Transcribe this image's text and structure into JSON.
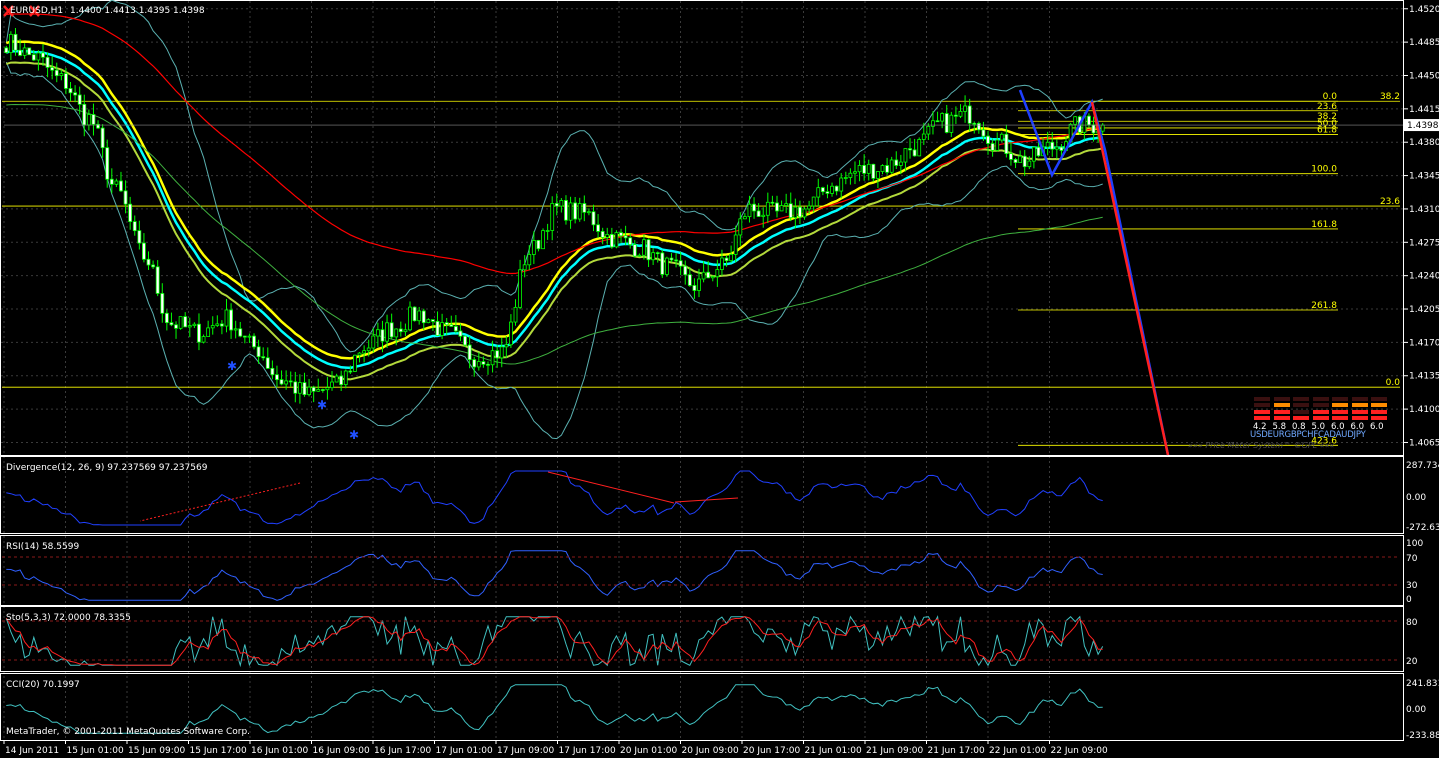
{
  "header": {
    "symbol": "EURUSD,H1",
    "ohlc": "1.4400 1.4413 1.4395 1.4398",
    "close_icons": [
      "close-icon",
      "close-icon"
    ]
  },
  "colors": {
    "bg": "#000000",
    "grid": "#3a3a3a",
    "bull": "#00ff00",
    "bear": "#ffffff",
    "ema_yellow": "#ffff00",
    "ema_cyan": "#00ffff",
    "ema_olive": "#b3d93b",
    "band_red": "#ff0000",
    "bollinger": "#5ab0b0",
    "trend": "#ff2020",
    "zigzag": "#1f3fff"
  },
  "footer": {
    "copyright": "MetaTrader, © 2001-2011 MetaQuotes Software Corp."
  },
  "price_meter": {
    "values": [
      "4.2",
      "5.8",
      "0.8",
      "5.0",
      "6.0",
      "6.0",
      "6.0"
    ],
    "currencies": "USDEURGBPCHFCADAUDJPY",
    "caption": "»»» Price Meter System™ ©GPL «««"
  },
  "chart_data": [
    {
      "type": "candlestick",
      "title": "EURUSD,H1",
      "subtitle": "1.4400 1.4413 1.4395 1.4398",
      "ylim": [
        1.4055,
        1.4525
      ],
      "y_ticks": [
        "1.4520",
        "1.4485",
        "1.4450",
        "1.4415",
        "1.4380",
        "1.4345",
        "1.4310",
        "1.4275",
        "1.4240",
        "1.4205",
        "1.4170",
        "1.4135",
        "1.4100",
        "1.4065"
      ],
      "current_price": "1.4398",
      "x_ticks": [
        "14 Jun 2011",
        "15 Jun 01:00",
        "15 Jun 09:00",
        "15 Jun 17:00",
        "16 Jun 01:00",
        "16 Jun 09:00",
        "16 Jun 17:00",
        "17 Jun 01:00",
        "17 Jun 09:00",
        "17 Jun 17:00",
        "20 Jun 01:00",
        "20 Jun 09:00",
        "20 Jun 17:00",
        "21 Jun 01:00",
        "21 Jun 09:00",
        "21 Jun 17:00",
        "22 Jun 01:00",
        "22 Jun 09:00"
      ],
      "close_keypoints": [
        [
          0,
          1.4485
        ],
        [
          6,
          1.447
        ],
        [
          12,
          1.4445
        ],
        [
          18,
          1.4405
        ],
        [
          24,
          1.433
        ],
        [
          30,
          1.426
        ],
        [
          36,
          1.419
        ],
        [
          42,
          1.418
        ],
        [
          48,
          1.4195
        ],
        [
          54,
          1.4165
        ],
        [
          60,
          1.413
        ],
        [
          66,
          1.4115
        ],
        [
          72,
          1.4125
        ],
        [
          78,
          1.4165
        ],
        [
          84,
          1.4185
        ],
        [
          90,
          1.42
        ],
        [
          96,
          1.418
        ],
        [
          102,
          1.4155
        ],
        [
          108,
          1.416
        ],
        [
          114,
          1.4265
        ],
        [
          120,
          1.431
        ],
        [
          126,
          1.4305
        ],
        [
          132,
          1.428
        ],
        [
          138,
          1.427
        ],
        [
          144,
          1.425
        ],
        [
          150,
          1.423
        ],
        [
          156,
          1.425
        ],
        [
          162,
          1.431
        ],
        [
          168,
          1.4305
        ],
        [
          174,
          1.431
        ],
        [
          180,
          1.4335
        ],
        [
          186,
          1.435
        ],
        [
          192,
          1.4355
        ],
        [
          198,
          1.4375
        ],
        [
          204,
          1.44
        ],
        [
          210,
          1.441
        ],
        [
          216,
          1.438
        ],
        [
          222,
          1.436
        ],
        [
          228,
          1.4375
        ],
        [
          234,
          1.4398
        ]
      ],
      "fibonacci_left": {
        "levels": [
          "0.0",
          "23.6",
          "38.2",
          "50.0",
          "61.8",
          "100.0",
          "161.8",
          "261.8",
          "423.6"
        ],
        "prices": [
          1.4423,
          1.4413,
          1.4402,
          1.4395,
          1.4388,
          1.4347,
          1.4289,
          1.4204,
          1.4062
        ]
      },
      "fibonacci_right": {
        "levels": [
          "38.2",
          "23.6",
          "0.0"
        ],
        "prices": [
          1.4423,
          1.4313,
          1.4123
        ]
      }
    },
    {
      "type": "line",
      "title": "Divergence(12, 26, 9) 97.237569 97.237569",
      "y_ticks": [
        "287.734",
        "0.00",
        "-272.634"
      ],
      "ylim": [
        -290,
        300
      ]
    },
    {
      "type": "line",
      "title": "RSI(14) 58.5599",
      "y_ticks": [
        "100",
        "70",
        "30",
        "0"
      ],
      "ylim": [
        0,
        100
      ],
      "levels": [
        70,
        30
      ]
    },
    {
      "type": "line",
      "title": "Sto(5,3,3) 72.0000 78.3355",
      "y_ticks": [
        "80",
        "20"
      ],
      "ylim": [
        0,
        100
      ],
      "levels": [
        80,
        20
      ]
    },
    {
      "type": "line",
      "title": "CCI(20) 70.1997",
      "y_ticks": [
        "241.8311",
        "0.00",
        "-233.883"
      ],
      "ylim": [
        -240,
        250
      ]
    }
  ]
}
